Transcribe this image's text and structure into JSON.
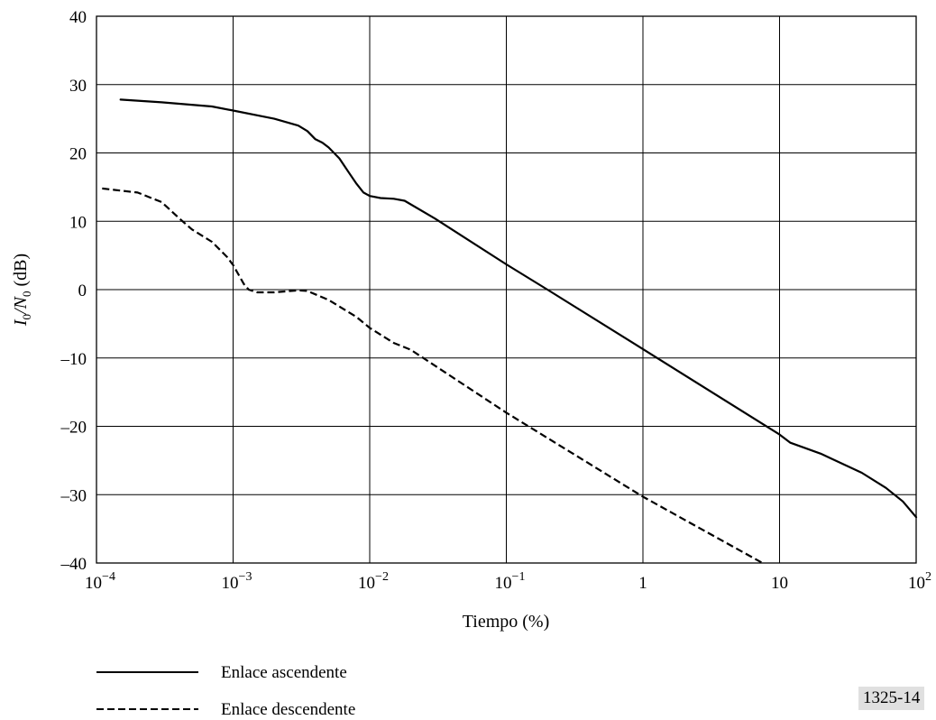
{
  "figure_id": "1325-14",
  "chart_data": {
    "type": "line",
    "xlabel": "Tiempo (%)",
    "ylabel_parts": [
      "I",
      "0",
      "/N",
      "0",
      " (dB)"
    ],
    "x_scale": "log",
    "xlim": [
      0.0001,
      100
    ],
    "ylim": [
      -40,
      40
    ],
    "grid": true,
    "x_tick_labels": [
      {
        "v": 0.0001,
        "base": "10",
        "exp": "−4"
      },
      {
        "v": 0.001,
        "base": "10",
        "exp": "−3"
      },
      {
        "v": 0.01,
        "base": "10",
        "exp": "−2"
      },
      {
        "v": 0.1,
        "base": "10",
        "exp": "−1"
      },
      {
        "v": 1,
        "base": "1",
        "exp": ""
      },
      {
        "v": 10,
        "base": "10",
        "exp": ""
      },
      {
        "v": 100,
        "base": "10",
        "exp": "2"
      }
    ],
    "y_ticks": [
      {
        "v": 40,
        "label": "40"
      },
      {
        "v": 30,
        "label": "30"
      },
      {
        "v": 20,
        "label": "20"
      },
      {
        "v": 10,
        "label": "10"
      },
      {
        "v": 0,
        "label": "0"
      },
      {
        "v": -10,
        "label": "–10"
      },
      {
        "v": -20,
        "label": "–20"
      },
      {
        "v": -30,
        "label": "–30"
      },
      {
        "v": -40,
        "label": "–40"
      }
    ],
    "legend_position": "bottom-left",
    "series": [
      {
        "name": "Enlace ascendente",
        "style": "solid",
        "points": [
          [
            0.00015,
            27.8
          ],
          [
            0.0003,
            27.4
          ],
          [
            0.0007,
            26.8
          ],
          [
            0.001,
            26.2
          ],
          [
            0.002,
            25.0
          ],
          [
            0.003,
            24.0
          ],
          [
            0.0035,
            23.2
          ],
          [
            0.004,
            22.0
          ],
          [
            0.0045,
            21.5
          ],
          [
            0.005,
            20.8
          ],
          [
            0.006,
            19.2
          ],
          [
            0.007,
            17.2
          ],
          [
            0.008,
            15.5
          ],
          [
            0.009,
            14.2
          ],
          [
            0.01,
            13.7
          ],
          [
            0.012,
            13.4
          ],
          [
            0.015,
            13.3
          ],
          [
            0.018,
            13.0
          ],
          [
            0.03,
            10.4
          ],
          [
            0.1,
            3.7
          ],
          [
            0.2,
            0.0
          ],
          [
            1,
            -8.7
          ],
          [
            10,
            -21.2
          ],
          [
            12,
            -22.4
          ],
          [
            20,
            -24.0
          ],
          [
            40,
            -26.8
          ],
          [
            60,
            -29.0
          ],
          [
            80,
            -31.0
          ],
          [
            100,
            -33.3
          ]
        ]
      },
      {
        "name": "Enlace descendente",
        "style": "dashed",
        "points": [
          [
            0.00011,
            14.8
          ],
          [
            0.0002,
            14.2
          ],
          [
            0.0003,
            12.8
          ],
          [
            0.0004,
            10.5
          ],
          [
            0.0005,
            8.8
          ],
          [
            0.0007,
            7.0
          ],
          [
            0.0009,
            4.8
          ],
          [
            0.001,
            3.6
          ],
          [
            0.0012,
            0.8
          ],
          [
            0.0013,
            0.0
          ],
          [
            0.0015,
            -0.4
          ],
          [
            0.002,
            -0.4
          ],
          [
            0.003,
            -0.1
          ],
          [
            0.0035,
            -0.2
          ],
          [
            0.005,
            -1.5
          ],
          [
            0.008,
            -4.0
          ],
          [
            0.01,
            -5.6
          ],
          [
            0.015,
            -7.8
          ],
          [
            0.02,
            -8.8
          ],
          [
            0.1,
            -18.0
          ],
          [
            1,
            -30.3
          ],
          [
            7.5,
            -40.0
          ]
        ]
      }
    ]
  }
}
